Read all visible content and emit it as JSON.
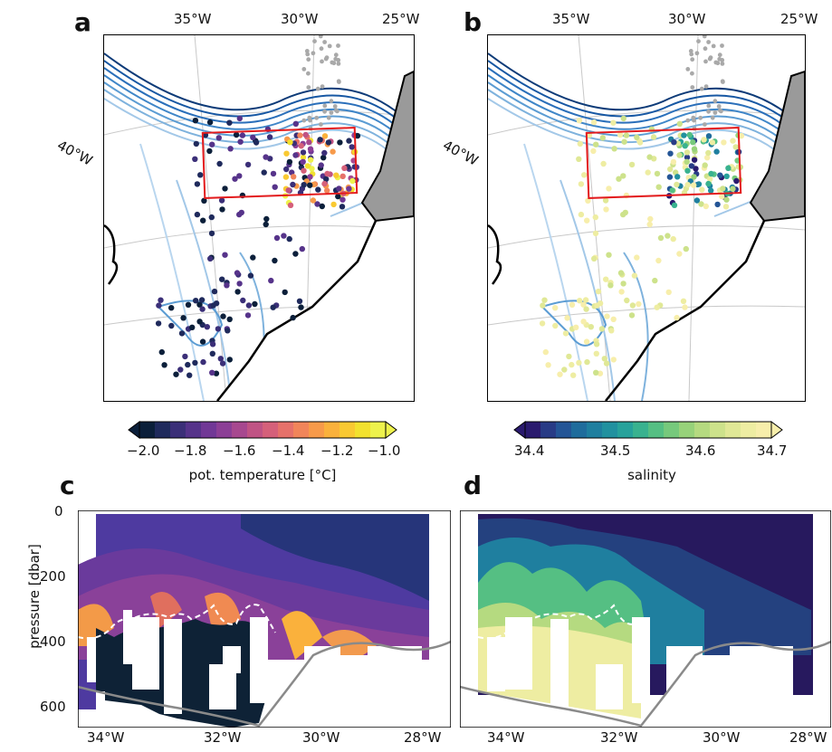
{
  "panels": {
    "a": "a",
    "b": "b",
    "c": "c",
    "d": "d"
  },
  "map_top_ticks": [
    "35°W",
    "30°W",
    "25°W"
  ],
  "map_side_tick": "40°W",
  "colorbar_temperature": {
    "label": "pot. temperature [°C]",
    "ticks": [
      "−2.0",
      "−1.8",
      "−1.6",
      "−1.4",
      "−1.2",
      "−1.0"
    ],
    "colors": [
      "#0b1f3a",
      "#1f2a5c",
      "#3b2f78",
      "#56338a",
      "#713896",
      "#8c3f96",
      "#a7488f",
      "#c05384",
      "#d5607a",
      "#e6716a",
      "#f1855a",
      "#f79a4a",
      "#fab13c",
      "#f9c932",
      "#f2e12e",
      "#eef24c"
    ]
  },
  "colorbar_salinity": {
    "label": "salinity",
    "ticks": [
      "34.4",
      "34.5",
      "34.6",
      "34.7"
    ],
    "colors": [
      "#2a1a6e",
      "#283b86",
      "#245596",
      "#1f6c9c",
      "#1f7f9f",
      "#21919f",
      "#27a29b",
      "#39b28f",
      "#55bf83",
      "#76c97c",
      "#97d27a",
      "#b5da80",
      "#cde28b",
      "#e0e896",
      "#eeeda2",
      "#f7eeab"
    ]
  },
  "section_axis": {
    "ylabel": "pressure [dbar]",
    "yticks": [
      "0",
      "200",
      "400",
      "600"
    ],
    "xticks": [
      "34°W",
      "32°W",
      "30°W",
      "28°W"
    ]
  },
  "chart_data": [
    {
      "type": "scatter",
      "panel": "a",
      "title": "",
      "colorbar_label": "pot. temperature [°C]",
      "colorbar_range": [
        -2.0,
        -1.0
      ],
      "lon_ticks": [
        "35°W",
        "30°W",
        "25°W"
      ],
      "lat_ticks": [
        "40°W"
      ]
    },
    {
      "type": "scatter",
      "panel": "b",
      "title": "",
      "colorbar_label": "salinity",
      "colorbar_range": [
        34.4,
        34.7
      ],
      "lon_ticks": [
        "35°W",
        "30°W",
        "25°W"
      ],
      "lat_ticks": [
        "40°W"
      ]
    },
    {
      "type": "heatmap",
      "panel": "c",
      "ylabel": "pressure [dbar]",
      "xlim": [
        -35,
        -27.5
      ],
      "ylim": [
        650,
        0
      ],
      "xticks": [
        -34,
        -32,
        -30,
        -28
      ],
      "yticks": [
        0,
        200,
        400,
        600
      ]
    },
    {
      "type": "heatmap",
      "panel": "d",
      "xlim": [
        -35,
        -27.5
      ],
      "ylim": [
        650,
        0
      ],
      "xticks": [
        -34,
        -32,
        -30,
        -28
      ],
      "yticks": [
        0,
        200,
        400,
        600
      ]
    }
  ]
}
